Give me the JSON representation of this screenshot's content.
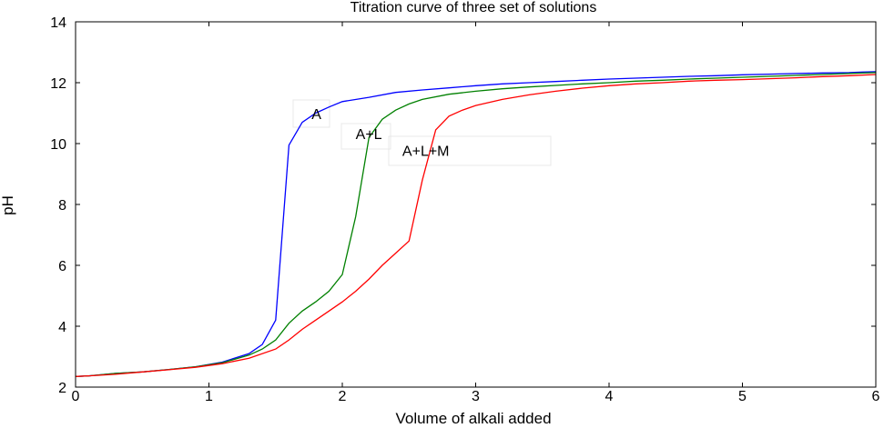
{
  "chart_data": {
    "type": "line",
    "title": "Titration curve of three set of solutions",
    "xlabel": "Volume of alkali added",
    "ylabel": "pH",
    "xlim": [
      0,
      6
    ],
    "ylim": [
      2,
      14
    ],
    "x_ticks": [
      0,
      1,
      2,
      3,
      4,
      5,
      6
    ],
    "y_ticks": [
      2,
      4,
      6,
      8,
      10,
      12,
      14
    ],
    "x_tick_labels": [
      "0",
      "1",
      "2",
      "3",
      "4",
      "5",
      "6"
    ],
    "y_tick_labels": [
      "2",
      "4",
      "6",
      "8",
      "10",
      "12",
      "14"
    ],
    "grid": false,
    "series": [
      {
        "name": "A",
        "color": "#0000ff",
        "x": [
          0,
          0.1,
          0.3,
          0.5,
          0.7,
          0.9,
          1.1,
          1.3,
          1.4,
          1.5,
          1.6,
          1.7,
          1.8,
          1.9,
          2.0,
          2.2,
          2.4,
          2.6,
          2.8,
          3.0,
          3.2,
          3.4,
          3.6,
          3.8,
          4.0,
          4.2,
          4.4,
          4.6,
          4.8,
          5.0,
          5.2,
          5.4,
          5.6,
          5.8,
          5.9,
          6.0
        ],
        "y": [
          2.35,
          2.37,
          2.45,
          2.5,
          2.58,
          2.67,
          2.82,
          3.1,
          3.4,
          4.2,
          9.95,
          10.7,
          11.0,
          11.2,
          11.38,
          11.52,
          11.68,
          11.76,
          11.83,
          11.9,
          11.96,
          12.0,
          12.04,
          12.08,
          12.12,
          12.15,
          12.18,
          12.21,
          12.23,
          12.26,
          12.28,
          12.3,
          12.32,
          12.33,
          12.35,
          12.36
        ]
      },
      {
        "name": "A+L",
        "color": "#008000",
        "x": [
          0,
          0.1,
          0.3,
          0.5,
          0.7,
          0.9,
          1.1,
          1.3,
          1.4,
          1.5,
          1.6,
          1.7,
          1.8,
          1.9,
          2.0,
          2.1,
          2.2,
          2.3,
          2.4,
          2.5,
          2.6,
          2.8,
          3.0,
          3.2,
          3.4,
          3.6,
          3.8,
          4.0,
          4.2,
          4.4,
          4.6,
          4.8,
          5.0,
          5.2,
          5.4,
          5.6,
          5.8,
          6.0
        ],
        "y": [
          2.35,
          2.37,
          2.45,
          2.5,
          2.58,
          2.67,
          2.8,
          3.05,
          3.25,
          3.55,
          4.1,
          4.5,
          4.8,
          5.15,
          5.7,
          7.6,
          10.2,
          10.8,
          11.1,
          11.3,
          11.45,
          11.62,
          11.72,
          11.8,
          11.86,
          11.91,
          11.96,
          12.0,
          12.05,
          12.08,
          12.12,
          12.15,
          12.18,
          12.21,
          12.24,
          12.27,
          12.3,
          12.33
        ]
      },
      {
        "name": "A+L+M",
        "color": "#ff0000",
        "x": [
          0,
          0.1,
          0.3,
          0.5,
          0.7,
          0.9,
          1.1,
          1.3,
          1.5,
          1.6,
          1.7,
          1.8,
          1.9,
          2.0,
          2.1,
          2.2,
          2.3,
          2.4,
          2.5,
          2.6,
          2.7,
          2.8,
          2.9,
          3.0,
          3.2,
          3.4,
          3.6,
          3.8,
          4.0,
          4.2,
          4.4,
          4.6,
          4.8,
          5.0,
          5.2,
          5.4,
          5.6,
          5.8,
          6.0
        ],
        "y": [
          2.35,
          2.37,
          2.42,
          2.5,
          2.57,
          2.65,
          2.77,
          2.95,
          3.25,
          3.55,
          3.9,
          4.2,
          4.5,
          4.8,
          5.15,
          5.55,
          6.0,
          6.4,
          6.8,
          8.8,
          10.45,
          10.9,
          11.1,
          11.25,
          11.45,
          11.6,
          11.72,
          11.82,
          11.9,
          11.96,
          12.0,
          12.05,
          12.08,
          12.1,
          12.13,
          12.16,
          12.2,
          12.23,
          12.27
        ]
      }
    ],
    "annotations": [
      {
        "text": "A",
        "x": 1.77,
        "y": 10.8
      },
      {
        "text": "A+L",
        "x": 2.1,
        "y": 10.15
      },
      {
        "text": "A+L+M",
        "x": 2.45,
        "y": 9.6
      }
    ]
  }
}
